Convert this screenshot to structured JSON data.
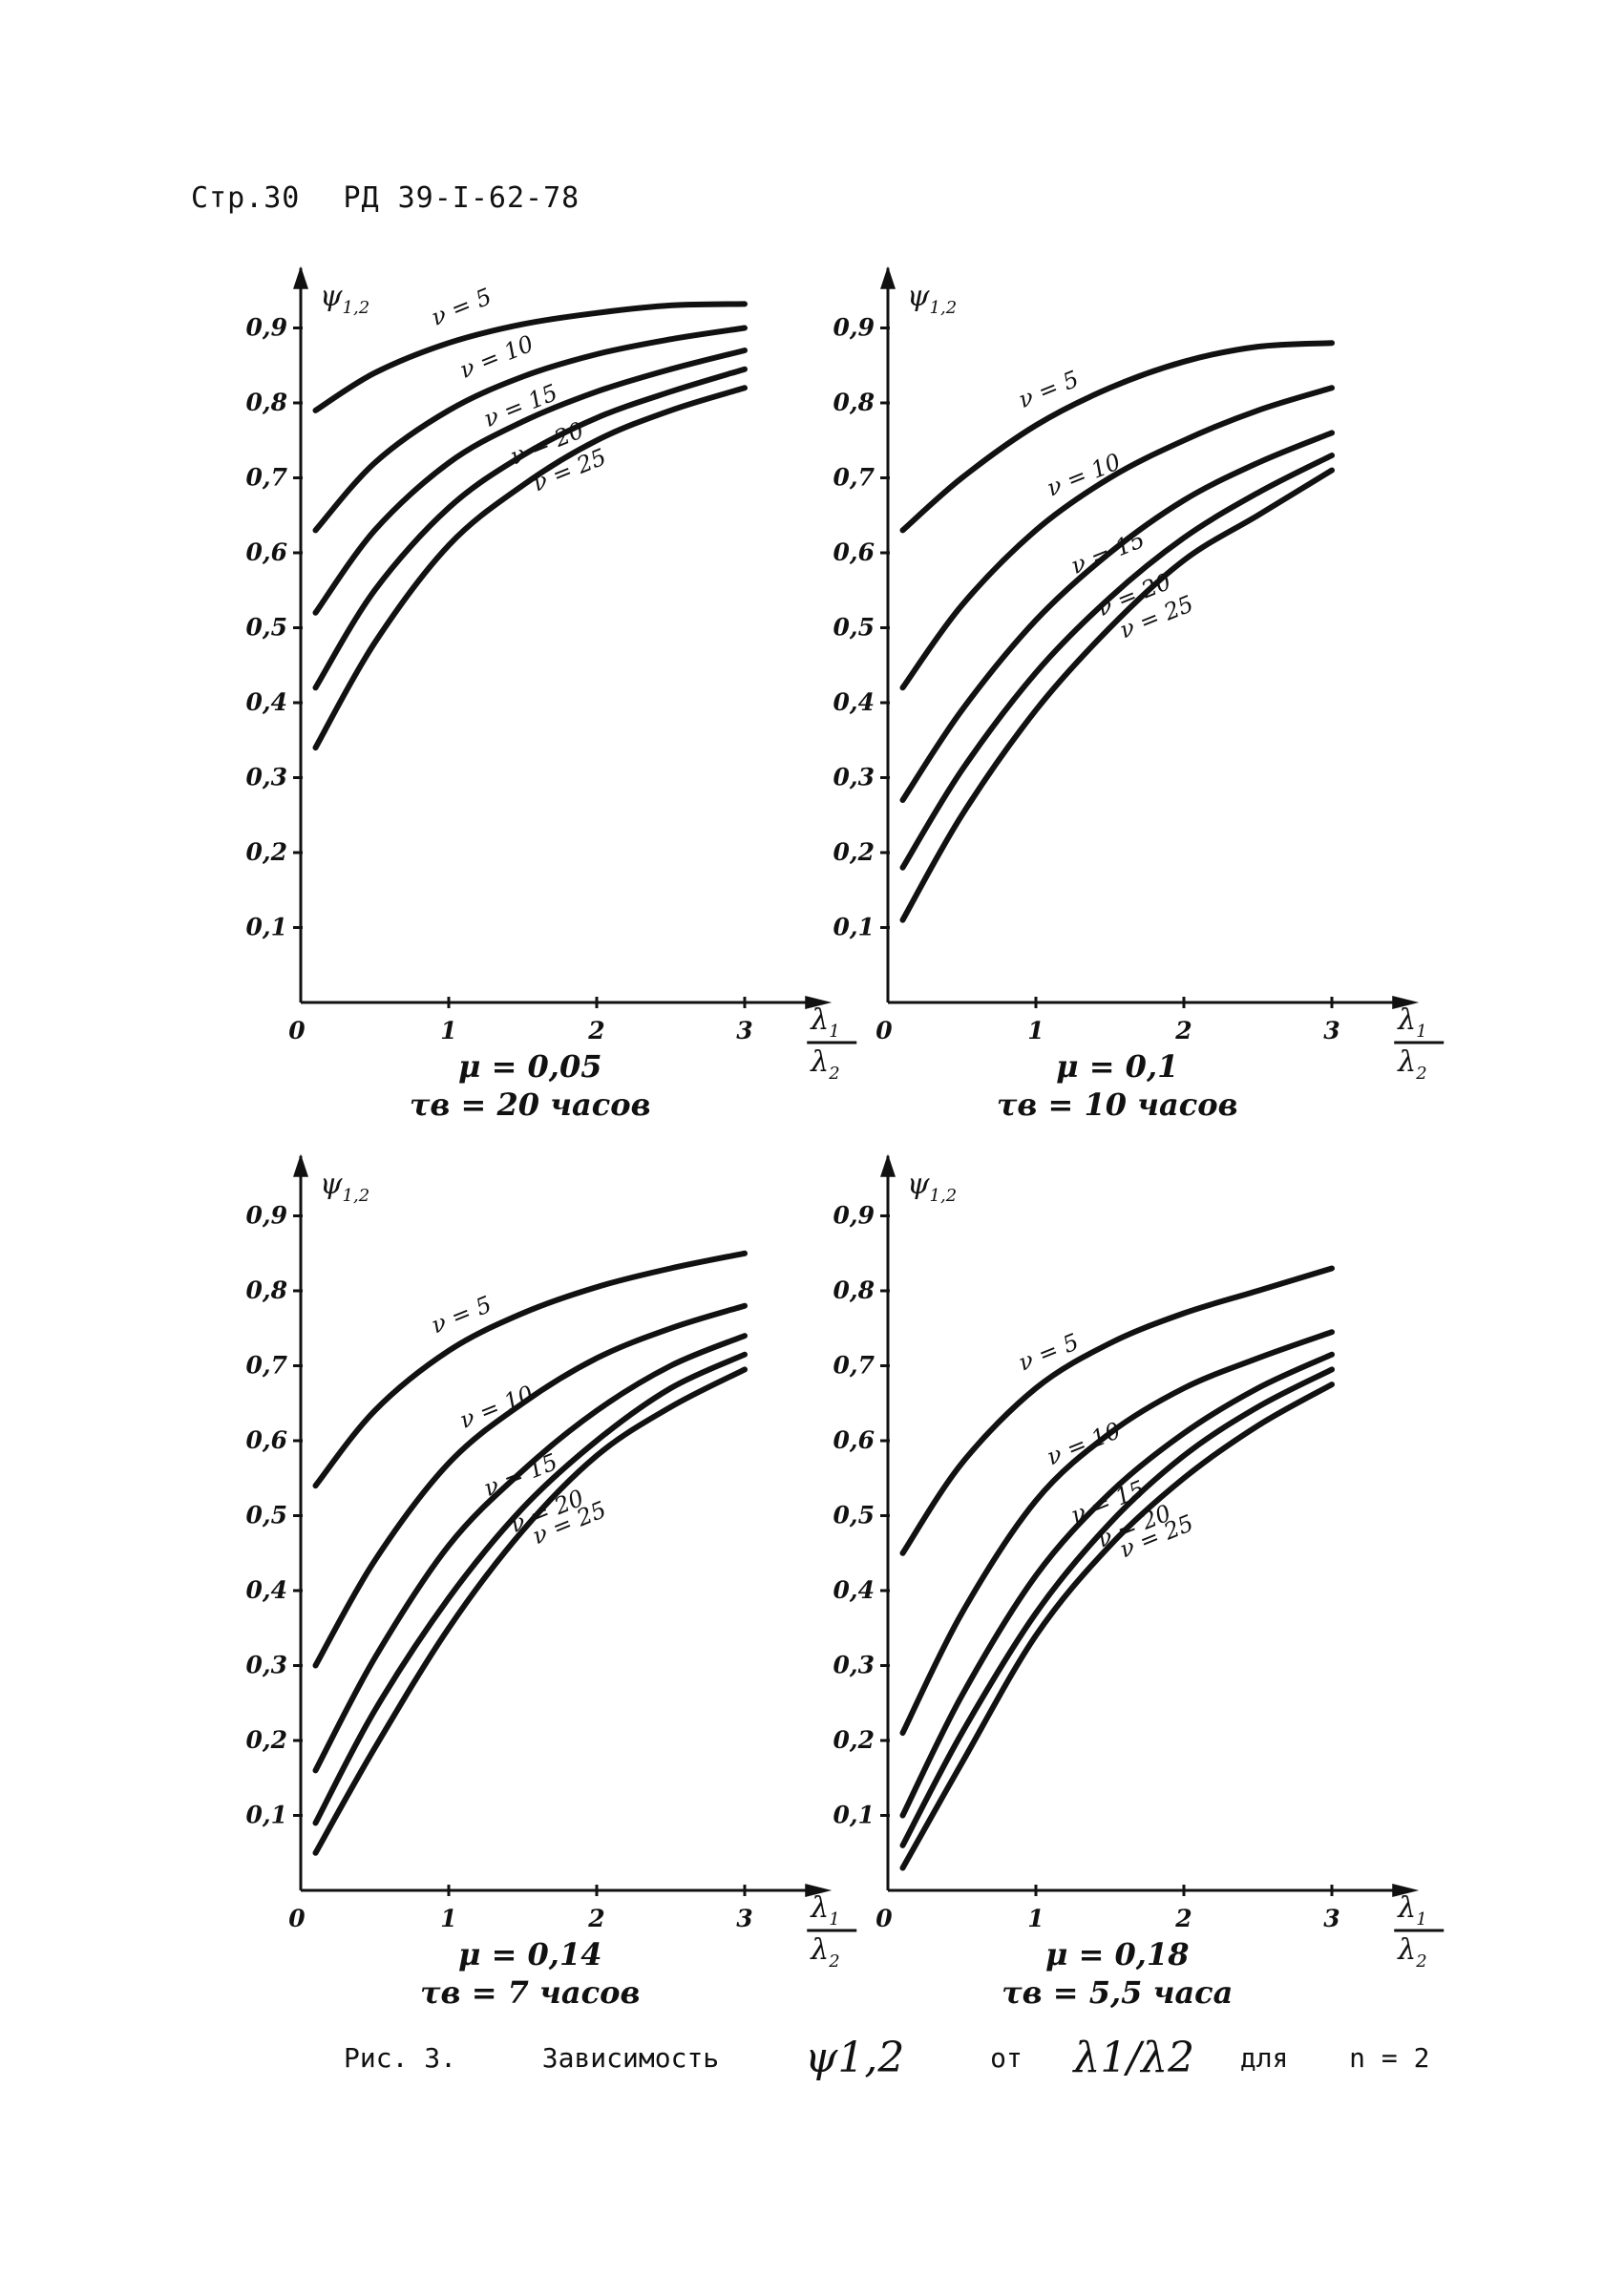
{
  "header": {
    "page": "Стр.30",
    "doc": "РД 39-I-62-78"
  },
  "caption": {
    "prefix": "Рис. 3.",
    "word1": "Зависимость",
    "psi": "ψ1,2",
    "word2": "от",
    "ratio": "λ1/λ2",
    "word3": "для",
    "n_eq": "n = 2"
  },
  "axis_common": {
    "y_label": "ψ1,2",
    "x_label": "λ1/λ2",
    "y_ticks": [
      "0,1",
      "0,2",
      "0,3",
      "0,4",
      "0,5",
      "0,6",
      "0,7",
      "0,8",
      "0,9"
    ],
    "x_ticks": [
      "0",
      "1",
      "2",
      "3"
    ]
  },
  "chart_data": [
    {
      "type": "line",
      "params": [
        "μ = 0,05",
        "τв = 20 часов"
      ],
      "xlim": [
        0,
        3.4
      ],
      "ylim": [
        0,
        0.95
      ],
      "x": [
        0.1,
        0.5,
        1,
        1.5,
        2,
        2.5,
        3
      ],
      "series": [
        {
          "name": "ν = 5",
          "values": [
            0.79,
            0.84,
            0.88,
            0.905,
            0.92,
            0.93,
            0.932
          ]
        },
        {
          "name": "ν = 10",
          "values": [
            0.63,
            0.72,
            0.79,
            0.835,
            0.865,
            0.885,
            0.9
          ]
        },
        {
          "name": "ν = 15",
          "values": [
            0.52,
            0.63,
            0.72,
            0.775,
            0.815,
            0.845,
            0.87
          ]
        },
        {
          "name": "ν = 20",
          "values": [
            0.42,
            0.55,
            0.66,
            0.73,
            0.78,
            0.815,
            0.845
          ]
        },
        {
          "name": "ν = 25",
          "values": [
            0.34,
            0.48,
            0.61,
            0.69,
            0.75,
            0.79,
            0.82
          ]
        }
      ]
    },
    {
      "type": "line",
      "params": [
        "μ = 0,1",
        "τв = 10 часов"
      ],
      "xlim": [
        0,
        3.4
      ],
      "ylim": [
        0,
        0.95
      ],
      "x": [
        0.1,
        0.5,
        1,
        1.5,
        2,
        2.5,
        3
      ],
      "series": [
        {
          "name": "ν = 5",
          "values": [
            0.63,
            0.7,
            0.77,
            0.82,
            0.855,
            0.875,
            0.88
          ]
        },
        {
          "name": "ν = 10",
          "values": [
            0.42,
            0.53,
            0.63,
            0.7,
            0.75,
            0.79,
            0.82
          ]
        },
        {
          "name": "ν = 15",
          "values": [
            0.27,
            0.39,
            0.51,
            0.6,
            0.67,
            0.72,
            0.76
          ]
        },
        {
          "name": "ν = 20",
          "values": [
            0.18,
            0.31,
            0.44,
            0.54,
            0.62,
            0.68,
            0.73
          ]
        },
        {
          "name": "ν = 25",
          "values": [
            0.11,
            0.25,
            0.39,
            0.5,
            0.59,
            0.65,
            0.71
          ]
        }
      ]
    },
    {
      "type": "line",
      "params": [
        "μ = 0,14",
        "τв = 7 часов"
      ],
      "xlim": [
        0,
        3.4
      ],
      "ylim": [
        0,
        0.95
      ],
      "x": [
        0.1,
        0.5,
        1,
        1.5,
        2,
        2.5,
        3
      ],
      "series": [
        {
          "name": "ν = 5",
          "values": [
            0.54,
            0.64,
            0.72,
            0.77,
            0.805,
            0.83,
            0.85
          ]
        },
        {
          "name": "ν = 10",
          "values": [
            0.3,
            0.44,
            0.57,
            0.65,
            0.71,
            0.75,
            0.78
          ]
        },
        {
          "name": "ν = 15",
          "values": [
            0.16,
            0.31,
            0.46,
            0.56,
            0.64,
            0.7,
            0.74
          ]
        },
        {
          "name": "ν = 20",
          "values": [
            0.09,
            0.24,
            0.39,
            0.51,
            0.6,
            0.67,
            0.715
          ]
        },
        {
          "name": "ν = 25",
          "values": [
            0.05,
            0.19,
            0.35,
            0.48,
            0.58,
            0.645,
            0.695
          ]
        }
      ]
    },
    {
      "type": "line",
      "params": [
        "μ = 0,18",
        "τв = 5,5 часа"
      ],
      "xlim": [
        0,
        3.4
      ],
      "ylim": [
        0,
        0.95
      ],
      "x": [
        0.1,
        0.5,
        1,
        1.5,
        2,
        2.5,
        3
      ],
      "series": [
        {
          "name": "ν = 5",
          "values": [
            0.45,
            0.57,
            0.67,
            0.73,
            0.77,
            0.8,
            0.83
          ]
        },
        {
          "name": "ν = 10",
          "values": [
            0.21,
            0.37,
            0.52,
            0.61,
            0.67,
            0.71,
            0.745
          ]
        },
        {
          "name": "ν = 15",
          "values": [
            0.1,
            0.26,
            0.42,
            0.53,
            0.61,
            0.67,
            0.715
          ]
        },
        {
          "name": "ν = 20",
          "values": [
            0.06,
            0.21,
            0.37,
            0.49,
            0.58,
            0.645,
            0.695
          ]
        },
        {
          "name": "ν = 25",
          "values": [
            0.03,
            0.17,
            0.34,
            0.46,
            0.55,
            0.62,
            0.675
          ]
        }
      ]
    }
  ]
}
